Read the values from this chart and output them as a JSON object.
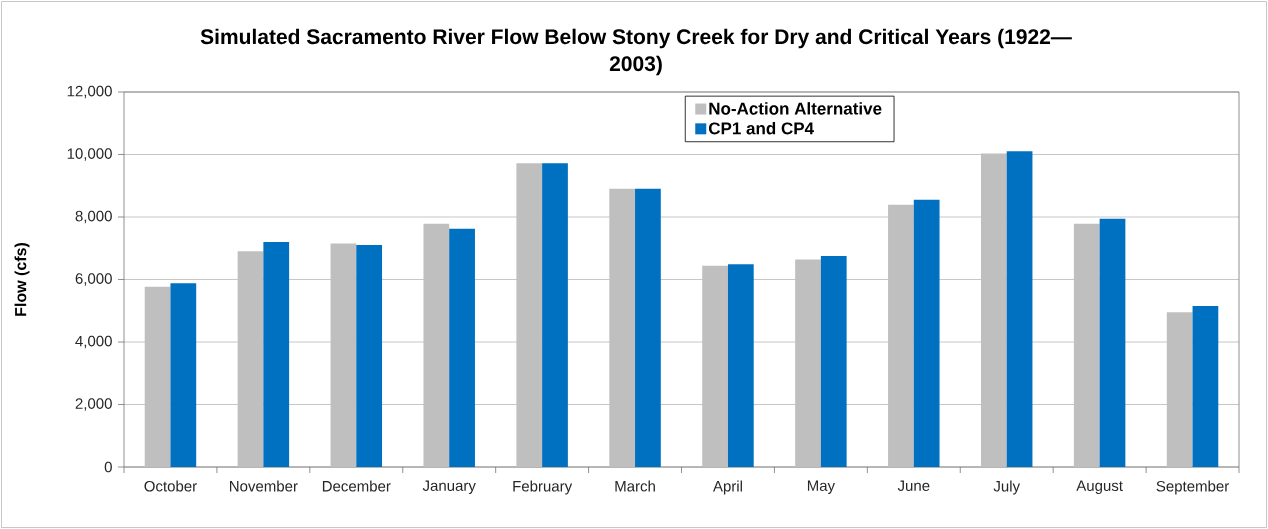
{
  "chart_data": {
    "type": "bar",
    "title": "Simulated Sacramento River Flow Below Stony Creek for Dry and Critical Years (1922—2003)",
    "ylabel": "Flow (cfs)",
    "categories": [
      "October",
      "November",
      "December",
      "January",
      "February",
      "March",
      "April",
      "May",
      "June",
      "July",
      "August",
      "September"
    ],
    "series": [
      {
        "name": "No-Action Alternative",
        "color": "#bfbfbf",
        "values": [
          5770,
          6900,
          7150,
          7780,
          9720,
          8900,
          6440,
          6640,
          8390,
          10030,
          7780,
          4950
        ]
      },
      {
        "name": "CP1 and CP4",
        "color": "#0070c0",
        "values": [
          5880,
          7200,
          7100,
          7620,
          9720,
          8900,
          6490,
          6750,
          8550,
          10100,
          7940,
          5150
        ]
      }
    ],
    "ylim": [
      0,
      12000
    ],
    "yticks": [
      0,
      {
        "value": 2000,
        "label": "2,000"
      },
      {
        "value": 4000,
        "label": "4,000"
      },
      {
        "value": 6000,
        "label": "6,000"
      },
      {
        "value": 8000,
        "label": "8,000"
      },
      {
        "value": 10000,
        "label": "10,000"
      },
      {
        "value": 12000,
        "label": "12,000"
      }
    ],
    "grid": "y",
    "legend": "top"
  }
}
